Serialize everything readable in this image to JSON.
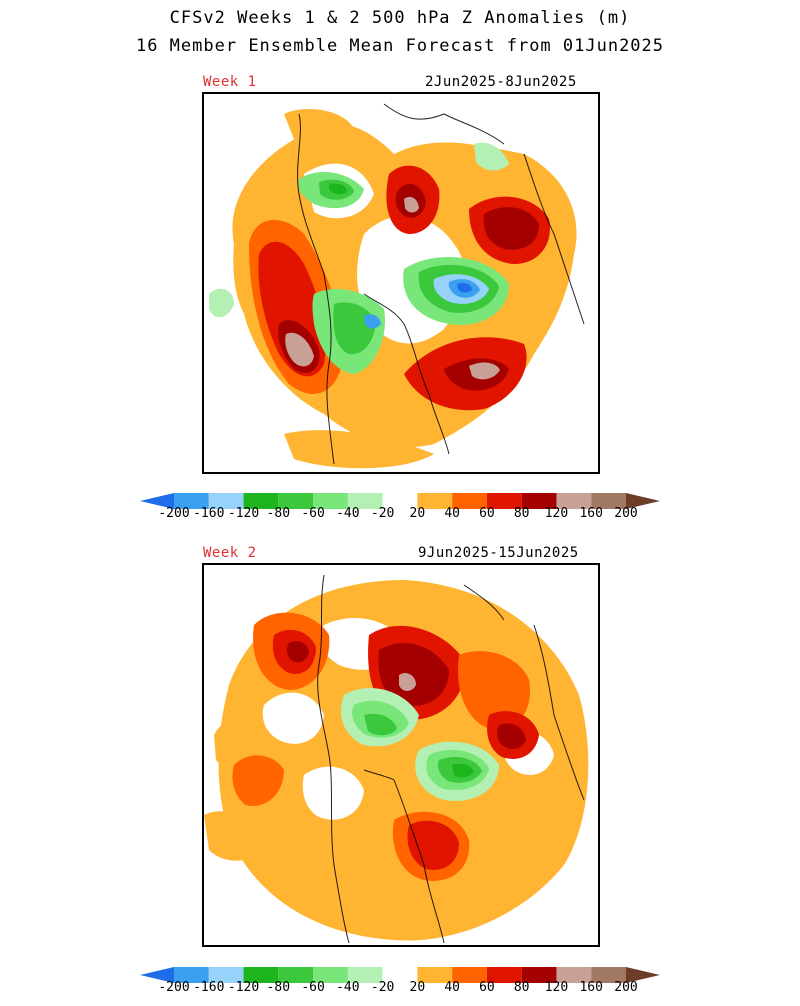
{
  "title": {
    "line1": "CFSv2 Weeks 1 & 2 500 hPa Z Anomalies (m)",
    "line2": "16 Member Ensemble Mean Forecast from 01Jun2025"
  },
  "panels": [
    {
      "week_label": "Week 1",
      "date_range": "2Jun2025-8Jun2025"
    },
    {
      "week_label": "Week 2",
      "date_range": "9Jun2025-15Jun2025"
    }
  ],
  "colorbar": {
    "tick_labels": [
      "-200",
      "-160",
      "-120",
      "-80",
      "-60",
      "-40",
      "-20",
      "20",
      "40",
      "60",
      "80",
      "120",
      "160",
      "200"
    ],
    "colors": [
      "#1e6eeb",
      "#3ca0f0",
      "#96d2fa",
      "#1eb41e",
      "#3cc83c",
      "#78e678",
      "#b4f0b4",
      "#ffffff",
      "#ffb432",
      "#ff6400",
      "#e11400",
      "#a50000",
      "#c8a096",
      "#a07864",
      "#6e3c28"
    ]
  }
}
